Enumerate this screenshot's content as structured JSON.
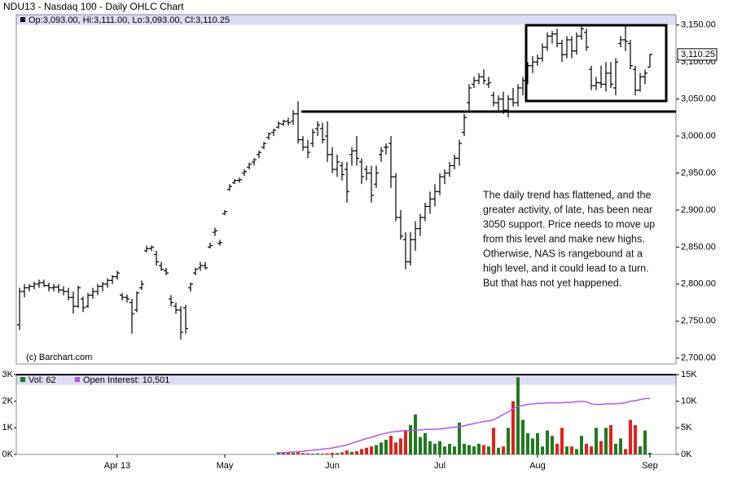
{
  "chart_data": [
    {
      "type": "ohlc",
      "title": "NDU13 - Nasdaq 100 - Daily OHLC Chart",
      "legend": "Op:3,093.00, Hi:3,111.00, Lo:3,093.00, Cl:3,110.25",
      "credit": "(c) Barchart.com",
      "last_label": "3,110.25",
      "annotation": [
        "The daily trend has flattened, and the",
        "greater activity, of late, has been near",
        "3050 support.  Price needs to move up",
        "from this level and make new highs.",
        "Otherwise, NAS is rangebound at a",
        "high level, and it could lead to a turn.",
        "But that has not yet happened."
      ],
      "color": "#000000",
      "ylim": [
        2692,
        3164
      ],
      "yticks": [
        {
          "value": 3150,
          "label": "3,150.00"
        },
        {
          "value": 3100,
          "label": "3,100.00"
        },
        {
          "value": 3050,
          "label": "3,050.00"
        },
        {
          "value": 3000,
          "label": "3,000.00"
        },
        {
          "value": 2950,
          "label": "2,950.00"
        },
        {
          "value": 2900,
          "label": "2,900.00"
        },
        {
          "value": 2850,
          "label": "2,850.00"
        },
        {
          "value": 2800,
          "label": "2,800.00"
        },
        {
          "value": 2750,
          "label": "2,750.00"
        },
        {
          "value": 2700,
          "label": "2,700.00"
        }
      ],
      "ohlc": [
        [
          2745,
          2795,
          2738,
          2790
        ],
        [
          2790,
          2800,
          2782,
          2795
        ],
        [
          2795,
          2800,
          2790,
          2797
        ],
        [
          2797,
          2803,
          2793,
          2800
        ],
        [
          2800,
          2806,
          2795,
          2802
        ],
        [
          2802,
          2806,
          2796,
          2798
        ],
        [
          2798,
          2802,
          2790,
          2795
        ],
        [
          2795,
          2800,
          2790,
          2796
        ],
        [
          2796,
          2800,
          2788,
          2792
        ],
        [
          2792,
          2797,
          2785,
          2790
        ],
        [
          2790,
          2795,
          2778,
          2782
        ],
        [
          2782,
          2790,
          2760,
          2770
        ],
        [
          2770,
          2798,
          2768,
          2795
        ],
        [
          2780,
          2783,
          2762,
          2768
        ],
        [
          2770,
          2788,
          2768,
          2785
        ],
        [
          2785,
          2795,
          2780,
          2790
        ],
        [
          2790,
          2800,
          2785,
          2797
        ],
        [
          2797,
          2803,
          2790,
          2800
        ],
        [
          2800,
          2808,
          2795,
          2805
        ],
        [
          2805,
          2812,
          2800,
          2810
        ],
        [
          2810,
          2818,
          2806,
          2815
        ],
        [
          2785,
          2788,
          2778,
          2782
        ],
        [
          2782,
          2786,
          2775,
          2780
        ],
        [
          2775,
          2780,
          2733,
          2760
        ],
        [
          2765,
          2790,
          2762,
          2788
        ],
        [
          2795,
          2805,
          2792,
          2800
        ],
        [
          2845,
          2852,
          2843,
          2848
        ],
        [
          2848,
          2852,
          2845,
          2850
        ],
        [
          2840,
          2845,
          2825,
          2830
        ],
        [
          2825,
          2830,
          2818,
          2820
        ],
        [
          2818,
          2822,
          2812,
          2815
        ],
        [
          2780,
          2785,
          2770,
          2775
        ],
        [
          2770,
          2775,
          2760,
          2765
        ],
        [
          2765,
          2770,
          2725,
          2735
        ],
        [
          2768,
          2772,
          2733,
          2740
        ],
        [
          2795,
          2802,
          2790,
          2800
        ],
        [
          2815,
          2822,
          2812,
          2820
        ],
        [
          2822,
          2830,
          2818,
          2825
        ],
        [
          2825,
          2830,
          2820,
          2822
        ],
        [
          2850,
          2856,
          2848,
          2852
        ],
        [
          2870,
          2876,
          2865,
          2872
        ],
        [
          2855,
          2860,
          2852,
          2856
        ],
        [
          2895,
          2900,
          2893,
          2898
        ],
        [
          2928,
          2935,
          2926,
          2932
        ],
        [
          2937,
          2942,
          2935,
          2940
        ],
        [
          2940,
          2944,
          2937,
          2941
        ],
        [
          2950,
          2955,
          2946,
          2952
        ],
        [
          2958,
          2964,
          2955,
          2962
        ],
        [
          2965,
          2970,
          2960,
          2968
        ],
        [
          2975,
          2980,
          2970,
          2978
        ],
        [
          2985,
          2992,
          2982,
          2990
        ],
        [
          2998,
          3005,
          2995,
          3003
        ],
        [
          3005,
          3010,
          3000,
          3008
        ],
        [
          3012,
          3020,
          3010,
          3017
        ],
        [
          3016,
          3022,
          3014,
          3020
        ],
        [
          3020,
          3025,
          3014,
          3018
        ],
        [
          3020,
          3035,
          3015,
          3030
        ],
        [
          3030,
          3047,
          2990,
          2995
        ],
        [
          2995,
          3000,
          2980,
          2985
        ],
        [
          2985,
          2995,
          2970,
          2978
        ],
        [
          2990,
          3010,
          2985,
          3005
        ],
        [
          3010,
          3020,
          3000,
          3015
        ],
        [
          3010,
          3018,
          2990,
          2995
        ],
        [
          3000,
          3020,
          2965,
          2975
        ],
        [
          2975,
          2985,
          2950,
          2955
        ],
        [
          2955,
          2975,
          2945,
          2965
        ],
        [
          2960,
          2965,
          2940,
          2948
        ],
        [
          2955,
          2965,
          2910,
          2925
        ],
        [
          2975,
          2985,
          2960,
          2980
        ],
        [
          2980,
          3000,
          2960,
          2970
        ],
        [
          2965,
          2970,
          2935,
          2945
        ],
        [
          2955,
          2960,
          2940,
          2950
        ],
        [
          2950,
          2960,
          2910,
          2920
        ],
        [
          2935,
          2960,
          2930,
          2950
        ],
        [
          2975,
          2985,
          2965,
          2980
        ],
        [
          2985,
          2990,
          2975,
          2985
        ],
        [
          2990,
          3000,
          2930,
          2945
        ],
        [
          2945,
          2950,
          2885,
          2890
        ],
        [
          2890,
          2900,
          2860,
          2865
        ],
        [
          2860,
          2870,
          2820,
          2830
        ],
        [
          2830,
          2870,
          2825,
          2860
        ],
        [
          2860,
          2885,
          2845,
          2875
        ],
        [
          2875,
          2895,
          2865,
          2890
        ],
        [
          2890,
          2910,
          2885,
          2905
        ],
        [
          2905,
          2925,
          2895,
          2915
        ],
        [
          2915,
          2935,
          2905,
          2925
        ],
        [
          2925,
          2950,
          2920,
          2945
        ],
        [
          2945,
          2955,
          2935,
          2950
        ],
        [
          2950,
          2965,
          2945,
          2960
        ],
        [
          2960,
          2975,
          2955,
          2970
        ],
        [
          2970,
          2995,
          2960,
          2990
        ],
        [
          3005,
          3030,
          3000,
          3025
        ],
        [
          3045,
          3070,
          3035,
          3065
        ],
        [
          3070,
          3080,
          3065,
          3075
        ],
        [
          3075,
          3085,
          3070,
          3080
        ],
        [
          3080,
          3090,
          3070,
          3075
        ],
        [
          3070,
          3080,
          3065,
          3072
        ],
        [
          3055,
          3060,
          3040,
          3045
        ],
        [
          3045,
          3055,
          3035,
          3050
        ],
        [
          3050,
          3060,
          3030,
          3035
        ],
        [
          3035,
          3055,
          3025,
          3050
        ],
        [
          3050,
          3065,
          3040,
          3045
        ],
        [
          3045,
          3070,
          3040,
          3065
        ],
        [
          3065,
          3080,
          3055,
          3075
        ],
        [
          3075,
          3100,
          3070,
          3095
        ],
        [
          3095,
          3108,
          3085,
          3100
        ],
        [
          3100,
          3110,
          3095,
          3105
        ],
        [
          3105,
          3125,
          3100,
          3120
        ],
        [
          3120,
          3140,
          3115,
          3135
        ],
        [
          3135,
          3142,
          3125,
          3138
        ],
        [
          3138,
          3145,
          3120,
          3125
        ],
        [
          3125,
          3130,
          3100,
          3110
        ],
        [
          3110,
          3135,
          3105,
          3130
        ],
        [
          3130,
          3135,
          3105,
          3115
        ],
        [
          3115,
          3140,
          3110,
          3135
        ],
        [
          3135,
          3148,
          3130,
          3145
        ],
        [
          3140,
          3145,
          3115,
          3120
        ],
        [
          3090,
          3095,
          3062,
          3068
        ],
        [
          3068,
          3080,
          3062,
          3072
        ],
        [
          3072,
          3095,
          3065,
          3070
        ],
        [
          3070,
          3100,
          3060,
          3085
        ],
        [
          3085,
          3100,
          3065,
          3070
        ],
        [
          3065,
          3105,
          3055,
          3100
        ],
        [
          3125,
          3135,
          3120,
          3130
        ],
        [
          3130,
          3150,
          3115,
          3128
        ],
        [
          3125,
          3130,
          3090,
          3095
        ],
        [
          3090,
          3095,
          3055,
          3062
        ],
        [
          3062,
          3085,
          3060,
          3080
        ],
        [
          3080,
          3090,
          3070,
          3085
        ],
        [
          3093,
          3111,
          3093,
          3110.25
        ]
      ]
    },
    {
      "type": "volume",
      "vol_legend": "Vol: 62",
      "oi_legend": "Open Interest: 10,501",
      "up_color": "#1e7b1e",
      "down_color": "#e3211c",
      "oi_color": "#b455e8",
      "categories": [
        null,
        null,
        null,
        null,
        null,
        null,
        null,
        null,
        null,
        null,
        null,
        null,
        null,
        null,
        null,
        null,
        null,
        null,
        null,
        null,
        "Apr 13",
        null,
        null,
        null,
        null,
        null,
        null,
        null,
        null,
        null,
        null,
        null,
        null,
        null,
        null,
        null,
        null,
        null,
        null,
        null,
        null,
        null,
        "May",
        null,
        null,
        null,
        null,
        null,
        null,
        null,
        null,
        null,
        null,
        null,
        null,
        null,
        null,
        null,
        null,
        null,
        null,
        null,
        null,
        null,
        "Jun",
        null,
        null,
        null,
        null,
        null,
        null,
        null,
        null,
        null,
        null,
        null,
        null,
        null,
        null,
        null,
        null,
        null,
        null,
        null,
        null,
        null,
        "Jul",
        null,
        null,
        null,
        null,
        null,
        null,
        null,
        null,
        null,
        null,
        null,
        null,
        null,
        null,
        null,
        null,
        null,
        null,
        null,
        "Aug",
        null,
        null,
        null,
        null,
        null,
        null,
        null,
        null,
        null,
        null,
        null,
        null,
        null,
        null,
        null,
        null,
        null,
        null,
        null,
        null,
        null,
        null,
        "Sep"
      ],
      "ylim": [
        0,
        3000
      ],
      "yticks": [
        {
          "value": 3000,
          "label": "3K"
        },
        {
          "value": 2000,
          "label": "2K"
        },
        {
          "value": 1000,
          "label": "1K"
        },
        {
          "value": 0,
          "label": "0K"
        }
      ],
      "y2lim": [
        0,
        15000
      ],
      "y2ticks": [
        {
          "value": 15000,
          "label": "15K"
        },
        {
          "value": 10000,
          "label": "10K"
        },
        {
          "value": 5000,
          "label": "5K"
        },
        {
          "value": 0,
          "label": "0K"
        }
      ],
      "volume": [
        null,
        null,
        null,
        null,
        null,
        null,
        null,
        null,
        null,
        null,
        null,
        null,
        null,
        null,
        null,
        null,
        null,
        null,
        null,
        null,
        null,
        null,
        null,
        null,
        null,
        null,
        null,
        null,
        null,
        null,
        null,
        null,
        null,
        null,
        null,
        null,
        null,
        null,
        null,
        null,
        null,
        null,
        null,
        null,
        null,
        null,
        null,
        null,
        null,
        null,
        null,
        null,
        null,
        80,
        70,
        90,
        60,
        80,
        50,
        40,
        30,
        40,
        30,
        40,
        60,
        50,
        80,
        150,
        100,
        120,
        200,
        250,
        300,
        350,
        450,
        550,
        700,
        450,
        600,
        900,
        1100,
        1500,
        650,
        800,
        500,
        400,
        500,
        300,
        400,
        300,
        1200,
        400,
        350,
        300,
        400,
        350,
        300,
        1000,
        250,
        300,
        1000,
        2000,
        2900,
        1300,
        800,
        600,
        800,
        300,
        900,
        700,
        400,
        1000,
        300,
        300,
        200,
        700,
        400,
        300,
        1000,
        500,
        1000,
        1100,
        400,
        600,
        200,
        1300,
        1100,
        300,
        900,
        62
      ],
      "open_interest": [
        null,
        null,
        null,
        null,
        null,
        null,
        null,
        null,
        null,
        null,
        null,
        null,
        null,
        null,
        null,
        null,
        null,
        null,
        null,
        null,
        null,
        null,
        null,
        null,
        null,
        null,
        null,
        null,
        null,
        null,
        null,
        null,
        null,
        null,
        null,
        null,
        null,
        null,
        null,
        null,
        null,
        null,
        null,
        null,
        null,
        null,
        null,
        null,
        null,
        null,
        null,
        null,
        null,
        300,
        350,
        400,
        450,
        500,
        600,
        700,
        800,
        900,
        1000,
        1100,
        1200,
        1400,
        1600,
        1800,
        2100,
        2400,
        2700,
        3000,
        3200,
        3500,
        3800,
        4000,
        4200,
        4300,
        4400,
        4500,
        4500,
        4600,
        4600,
        4700,
        4700,
        4700,
        4800,
        4900,
        5000,
        5100,
        5200,
        5400,
        5600,
        5800,
        6000,
        6200,
        6300,
        6500,
        7000,
        7500,
        8000,
        8600,
        9000,
        9200,
        9400,
        9500,
        9600,
        9600,
        9700,
        9700,
        9700,
        9700,
        9800,
        9800,
        9900,
        10000,
        9900,
        9500,
        9400,
        9400,
        9500,
        9500,
        9500,
        9600,
        9700,
        10000,
        10100,
        10300,
        10500,
        10501
      ]
    }
  ]
}
